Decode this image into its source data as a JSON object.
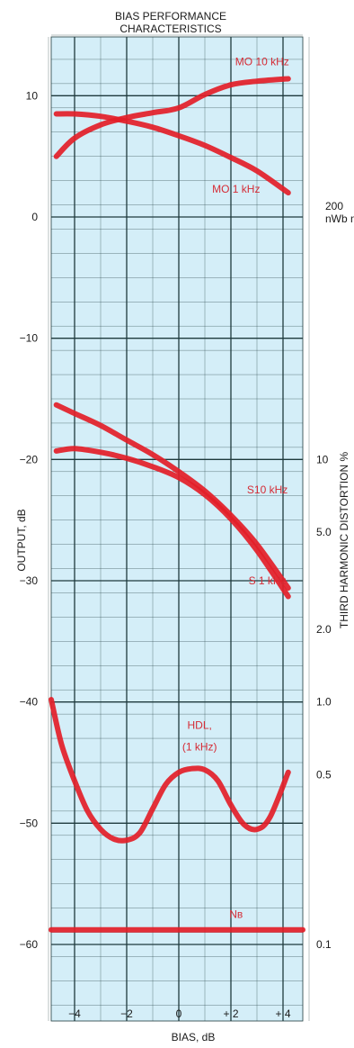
{
  "chart_data": {
    "type": "line",
    "title": [
      "BIAS PERFORMANCE",
      "CHARACTERISTICS"
    ],
    "xlabel": "BIAS, dB",
    "ylabel": "OUTPUT, dB",
    "y2label": "THIRD HARMONIC DISTORTION %",
    "xlim": [
      -5,
      5
    ],
    "ylim": [
      -66,
      15
    ],
    "x_ticks": [
      {
        "value": -4,
        "label": "−4"
      },
      {
        "value": -2,
        "label": "−2"
      },
      {
        "value": 0,
        "label": "0"
      },
      {
        "value": 2,
        "label": "+ 2"
      },
      {
        "value": 4,
        "label": "+ 4"
      }
    ],
    "y_ticks": [
      {
        "value": 10,
        "label": "10"
      },
      {
        "value": 0,
        "label": "0"
      },
      {
        "value": -10,
        "label": "−10"
      },
      {
        "value": -20,
        "label": "−20"
      },
      {
        "value": -30,
        "label": "−30"
      },
      {
        "value": -40,
        "label": "−40"
      },
      {
        "value": -50,
        "label": "−50"
      },
      {
        "value": -60,
        "label": "−60"
      }
    ],
    "y2_ticks": [
      {
        "value": 10,
        "label": "10",
        "at_output_db": -20
      },
      {
        "value": 5.0,
        "label": "5.0",
        "at_output_db": -26
      },
      {
        "value": 2.0,
        "label": "2.0",
        "at_output_db": -34
      },
      {
        "value": 1.0,
        "label": "1.0",
        "at_output_db": -40
      },
      {
        "value": 0.5,
        "label": "0.5",
        "at_output_db": -46
      },
      {
        "value": 0.1,
        "label": "0.1",
        "at_output_db": -60
      }
    ],
    "reference_label": {
      "lines": [
        "200",
        "nWb m"
      ],
      "at_output_db": 0
    },
    "grid": true,
    "series": [
      {
        "name": "MO 10 kHz",
        "label_pos": [
          3.2,
          12.5
        ],
        "x": [
          -4.7,
          -4,
          -3,
          -2,
          -1,
          0,
          1,
          2,
          3,
          4.2
        ],
        "y": [
          5,
          6.5,
          7.6,
          8.2,
          8.6,
          9.0,
          10.1,
          10.9,
          11.2,
          11.4
        ]
      },
      {
        "name": "MO 1 kHz",
        "label_pos": [
          2.2,
          2.0
        ],
        "x": [
          -4.7,
          -4,
          -3,
          -2,
          -1,
          0,
          1,
          2,
          3,
          4.2
        ],
        "y": [
          8.5,
          8.5,
          8.3,
          7.9,
          7.4,
          6.7,
          5.9,
          4.9,
          3.8,
          2.0
        ]
      },
      {
        "name": "S10 kHz",
        "label_pos": [
          3.4,
          -22.8
        ],
        "x": [
          -4.7,
          -4,
          -3,
          -2,
          -1,
          0,
          1,
          2,
          3,
          4.2
        ],
        "y": [
          -15.5,
          -16.2,
          -17.2,
          -18.4,
          -19.6,
          -21.0,
          -22.6,
          -24.6,
          -27.0,
          -30.6
        ]
      },
      {
        "name": "S 1 kHz",
        "label_pos": [
          3.4,
          -30.3
        ],
        "x": [
          -4.7,
          -4,
          -3,
          -2,
          -1,
          0,
          1,
          2,
          3,
          4.2
        ],
        "y": [
          -19.3,
          -19.1,
          -19.4,
          -19.9,
          -20.6,
          -21.5,
          -22.9,
          -24.9,
          -27.5,
          -31.3
        ]
      },
      {
        "name": "HDL,",
        "label_lines": [
          "HDL,",
          "(1 kHz)"
        ],
        "label_pos": [
          0.8,
          -42.2
        ],
        "x": [
          -5,
          -4.5,
          -4,
          -3.5,
          -3,
          -2.5,
          -2,
          -1.5,
          -1,
          -0.5,
          0,
          0.5,
          1,
          1.5,
          2,
          2.5,
          3,
          3.5,
          4.2
        ],
        "y": [
          -39.8,
          -43.5,
          -46.5,
          -49.0,
          -50.5,
          -51.3,
          -51.4,
          -50.8,
          -48.8,
          -46.8,
          -45.8,
          -45.5,
          -45.6,
          -46.5,
          -48.5,
          -50.1,
          -50.5,
          -49.5,
          -45.8
        ]
      },
      {
        "name": "Nʙ",
        "label_pos": [
          2.2,
          -57.8
        ],
        "x": [
          -5,
          5
        ],
        "y": [
          -58.8,
          -58.8
        ]
      }
    ],
    "colors": {
      "background": "#d4eef8",
      "grid": "#1e3a3d",
      "curve": "#e31e28",
      "label": "#d52b35"
    }
  }
}
